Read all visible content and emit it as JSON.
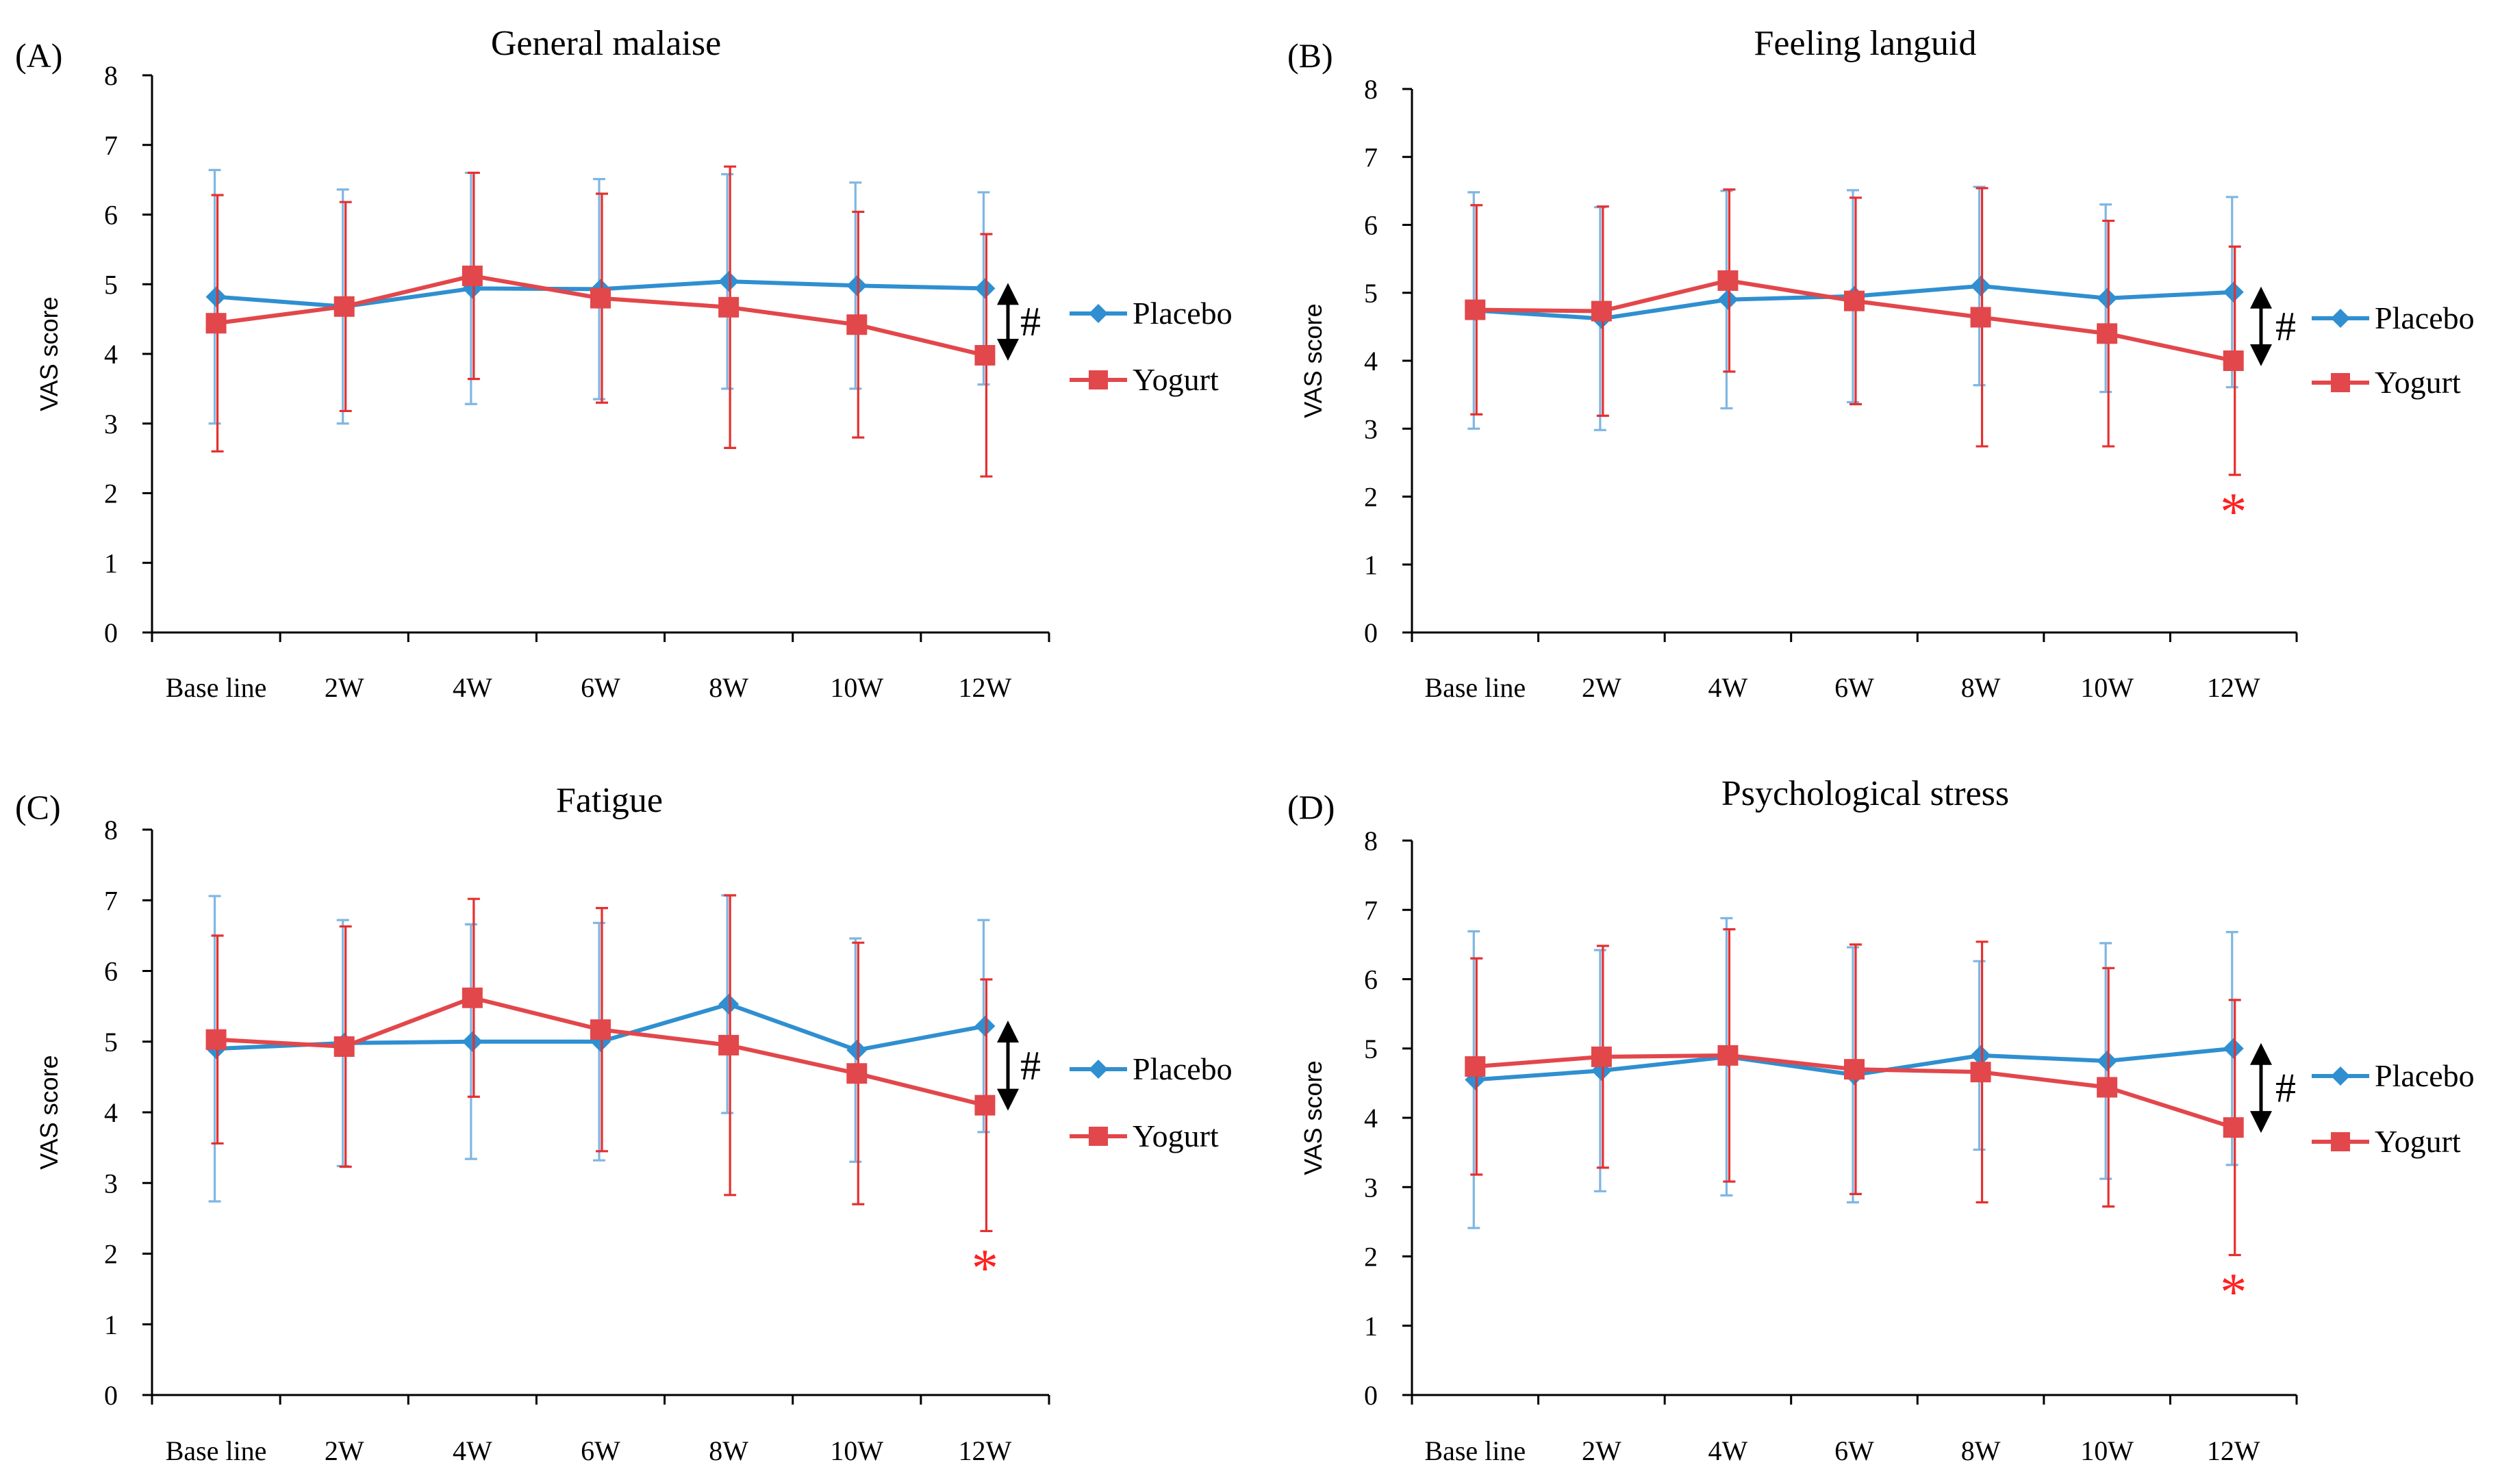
{
  "colors": {
    "placebo": "#2f8fd0",
    "yogurt": "#e2474b",
    "placebo_err": "#7fb6e2",
    "yogurt_err": "#e53030",
    "axis": "#000000",
    "star": "#ff2020"
  },
  "chart_data": [
    {
      "type": "line",
      "panel": "(A)",
      "title": "General malaise",
      "xlabel": "",
      "ylabel": "VAS score",
      "ylim": [
        0,
        8
      ],
      "yticks": [
        "0",
        "1",
        "2",
        "3",
        "4",
        "5",
        "6",
        "7",
        "8"
      ],
      "categories": [
        "Base line",
        "2W",
        "4W",
        "6W",
        "8W",
        "10W",
        "12W"
      ],
      "series": [
        {
          "name": "Placebo",
          "marker": "diamond",
          "values": [
            4.82,
            4.68,
            4.94,
            4.93,
            5.04,
            4.98,
            4.94
          ],
          "sd": [
            1.82,
            1.68,
            1.66,
            1.58,
            1.54,
            1.48,
            1.38
          ]
        },
        {
          "name": "Yogurt",
          "marker": "square",
          "values": [
            4.44,
            4.68,
            5.12,
            4.8,
            4.67,
            4.42,
            3.98
          ],
          "sd": [
            1.84,
            1.5,
            1.48,
            1.5,
            2.02,
            1.62,
            1.74
          ]
        }
      ],
      "annotations": {
        "hash": "#",
        "star": ""
      }
    },
    {
      "type": "line",
      "panel": "(B)",
      "title": "Feeling languid",
      "xlabel": "",
      "ylabel": "VAS score",
      "ylim": [
        0,
        8
      ],
      "yticks": [
        "0",
        "1",
        "2",
        "3",
        "4",
        "5",
        "6",
        "7",
        "8"
      ],
      "categories": [
        "Base line",
        "2W",
        "4W",
        "6W",
        "8W",
        "10W",
        "12W"
      ],
      "series": [
        {
          "name": "Placebo",
          "marker": "diamond",
          "values": [
            4.74,
            4.62,
            4.9,
            4.95,
            5.1,
            4.92,
            5.01
          ],
          "sd": [
            1.74,
            1.64,
            1.6,
            1.56,
            1.46,
            1.38,
            1.4
          ]
        },
        {
          "name": "Yogurt",
          "marker": "square",
          "values": [
            4.75,
            4.73,
            5.18,
            4.88,
            4.64,
            4.4,
            4.0
          ],
          "sd": [
            1.54,
            1.54,
            1.34,
            1.52,
            1.9,
            1.66,
            1.68
          ]
        }
      ],
      "annotations": {
        "hash": "#",
        "star": "*"
      }
    },
    {
      "type": "line",
      "panel": "(C)",
      "title": "Fatigue",
      "xlabel": "",
      "ylabel": "VAS score",
      "ylim": [
        0,
        8
      ],
      "yticks": [
        "0",
        "1",
        "2",
        "3",
        "4",
        "5",
        "6",
        "7",
        "8"
      ],
      "categories": [
        "Base line",
        "2W",
        "4W",
        "6W",
        "8W",
        "10W",
        "12W"
      ],
      "series": [
        {
          "name": "Placebo",
          "marker": "diamond",
          "values": [
            4.9,
            4.98,
            5.0,
            5.0,
            5.53,
            4.88,
            5.22
          ],
          "sd": [
            2.16,
            1.74,
            1.66,
            1.68,
            1.54,
            1.58,
            1.5
          ]
        },
        {
          "name": "Yogurt",
          "marker": "square",
          "values": [
            5.03,
            4.93,
            5.62,
            5.17,
            4.95,
            4.55,
            4.1
          ],
          "sd": [
            1.47,
            1.7,
            1.4,
            1.72,
            2.12,
            1.85,
            1.78
          ]
        }
      ],
      "annotations": {
        "hash": "#",
        "star": "*"
      }
    },
    {
      "type": "line",
      "panel": "(D)",
      "title": "Psychological stress",
      "xlabel": "",
      "ylabel": "VAS score",
      "ylim": [
        0,
        8
      ],
      "yticks": [
        "0",
        "1",
        "2",
        "3",
        "4",
        "5",
        "6",
        "7",
        "8"
      ],
      "categories": [
        "Base line",
        "2W",
        "4W",
        "6W",
        "8W",
        "10W",
        "12W"
      ],
      "series": [
        {
          "name": "Placebo",
          "marker": "diamond",
          "values": [
            4.55,
            4.68,
            4.88,
            4.62,
            4.9,
            4.82,
            5.0
          ],
          "sd": [
            2.14,
            1.74,
            2.0,
            1.84,
            1.36,
            1.7,
            1.68
          ]
        },
        {
          "name": "Yogurt",
          "marker": "square",
          "values": [
            4.74,
            4.88,
            4.9,
            4.7,
            4.66,
            4.44,
            3.86
          ],
          "sd": [
            1.56,
            1.6,
            1.82,
            1.8,
            1.88,
            1.72,
            1.84
          ]
        }
      ],
      "annotations": {
        "hash": "#",
        "star": "*"
      }
    }
  ]
}
